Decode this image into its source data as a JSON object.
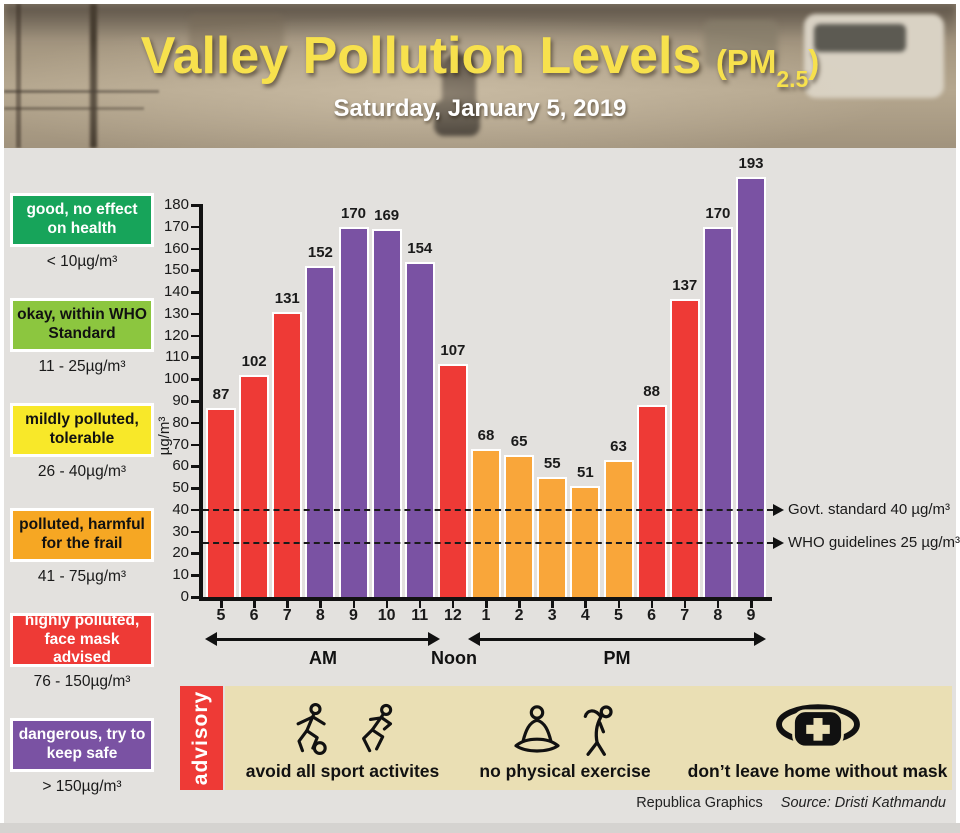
{
  "header": {
    "title_main": "Valley Pollution Levels",
    "title_pm_prefix": "(PM",
    "title_pm_sub": "2.5",
    "title_pm_suffix": ")",
    "date": "Saturday, January 5, 2019"
  },
  "legend": {
    "items": [
      {
        "label": "good, no effect on health",
        "range": "< 10µg/m³",
        "color": "#17a45a",
        "text_color": "#ffffff"
      },
      {
        "label": "okay, within WHO Standard",
        "range": "11 - 25µg/m³",
        "color": "#8cc63f",
        "text_color": "#111111"
      },
      {
        "label": "mildly polluted, tolerable",
        "range": "26 - 40µg/m³",
        "color": "#f8e829",
        "text_color": "#111111"
      },
      {
        "label": "polluted, harmful for the frail",
        "range": "41 - 75µg/m³",
        "color": "#f6a723",
        "text_color": "#111111"
      },
      {
        "label": "highly polluted, face mask advised",
        "range": "76 - 150µg/m³",
        "color": "#ee3a36",
        "text_color": "#ffffff"
      },
      {
        "label": "dangerous, try to keep safe",
        "range": "> 150µg/m³",
        "color": "#7a52a3",
        "text_color": "#ffffff"
      }
    ]
  },
  "chart_data": {
    "type": "bar",
    "title": "Valley Pollution Levels (PM2.5) — Saturday, January 5, 2019",
    "ylabel": "µg/m³",
    "ylim": [
      0,
      180
    ],
    "ytick_step": 10,
    "grid": false,
    "categories": [
      "5",
      "6",
      "7",
      "8",
      "9",
      "10",
      "11",
      "12",
      "1",
      "2",
      "3",
      "4",
      "5",
      "6",
      "7",
      "8",
      "9"
    ],
    "values": [
      87,
      102,
      131,
      152,
      170,
      169,
      154,
      107,
      68,
      65,
      55,
      51,
      63,
      88,
      137,
      170,
      193
    ],
    "bar_colors": [
      "#ee3a36",
      "#ee3a36",
      "#ee3a36",
      "#7a52a3",
      "#7a52a3",
      "#7a52a3",
      "#7a52a3",
      "#ee3a36",
      "#f9a63a",
      "#f9a63a",
      "#f9a63a",
      "#f9a63a",
      "#f9a63a",
      "#ee3a36",
      "#ee3a36",
      "#7a52a3",
      "#7a52a3"
    ],
    "period_labels": {
      "am": "AM",
      "noon": "Noon",
      "pm": "PM"
    },
    "reference_lines": [
      {
        "value": 40,
        "label": "Govt. standard 40 µg/m³"
      },
      {
        "value": 25,
        "label": "WHO guidelines 25 µg/m³"
      }
    ]
  },
  "advisory": {
    "tab_label": "advisory",
    "items": [
      {
        "label": "avoid all sport activites",
        "icons": [
          "football-player-icon",
          "runner-icon"
        ]
      },
      {
        "label": "no physical exercise",
        "icons": [
          "meditation-icon",
          "stretching-icon"
        ]
      },
      {
        "label": "don’t leave home without mask",
        "icons": [
          "mask-icon"
        ]
      }
    ]
  },
  "footer": {
    "credit": "Republica Graphics",
    "source": "Source: Dristi Kathmandu"
  }
}
